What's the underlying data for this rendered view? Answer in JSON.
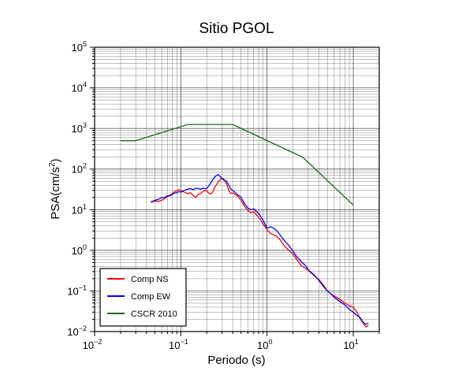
{
  "chart_data": {
    "type": "line",
    "title": "Sitio PGOL",
    "xlabel": "Periodo (s)",
    "ylabel_main": "PSA(cm/s",
    "ylabel_sup": "2",
    "ylabel_close": ")",
    "x_scale": "log",
    "y_scale": "log",
    "xlim": [
      0.01,
      20
    ],
    "ylim": [
      0.01,
      100000
    ],
    "x_ticks": [
      {
        "value": 0.01,
        "base": "10",
        "exp": "−2"
      },
      {
        "value": 0.1,
        "base": "10",
        "exp": "−1"
      },
      {
        "value": 1,
        "base": "10",
        "exp": "0"
      },
      {
        "value": 10,
        "base": "10",
        "exp": "1"
      }
    ],
    "y_ticks": [
      {
        "value": 0.01,
        "base": "10",
        "exp": "−2"
      },
      {
        "value": 0.1,
        "base": "10",
        "exp": "−1"
      },
      {
        "value": 1,
        "base": "10",
        "exp": "0"
      },
      {
        "value": 10,
        "base": "10",
        "exp": "1"
      },
      {
        "value": 100,
        "base": "10",
        "exp": "2"
      },
      {
        "value": 1000,
        "base": "10",
        "exp": "3"
      },
      {
        "value": 10000,
        "base": "10",
        "exp": "4"
      },
      {
        "value": 100000,
        "base": "10",
        "exp": "5"
      }
    ],
    "grid": true,
    "legend_position": "bottom-left",
    "series": [
      {
        "name": "Comp NS",
        "color": "#ff0000",
        "x": [
          0.045,
          0.05,
          0.055,
          0.06,
          0.065,
          0.07,
          0.075,
          0.08,
          0.085,
          0.09,
          0.095,
          0.1,
          0.11,
          0.12,
          0.13,
          0.14,
          0.15,
          0.16,
          0.17,
          0.18,
          0.19,
          0.2,
          0.21,
          0.22,
          0.23,
          0.24,
          0.25,
          0.26,
          0.27,
          0.28,
          0.3,
          0.32,
          0.34,
          0.36,
          0.38,
          0.4,
          0.45,
          0.5,
          0.55,
          0.6,
          0.65,
          0.7,
          0.8,
          0.9,
          1.0,
          1.1,
          1.2,
          1.3,
          1.4,
          1.5,
          1.6,
          1.8,
          2.0,
          2.2,
          2.5,
          2.8,
          3.0,
          3.5,
          4.0,
          4.5,
          5.0,
          5.5,
          6.0,
          7.0,
          8.0,
          9.0,
          10.0,
          11.0,
          12.0,
          13.0,
          14.0,
          15.0
        ],
        "values": [
          15,
          16.5,
          16,
          17,
          19,
          21,
          23,
          25,
          28,
          29,
          31,
          30,
          27,
          25,
          26,
          22,
          20,
          24,
          25,
          28,
          30,
          29,
          26,
          24,
          26,
          30,
          37,
          42,
          48,
          52,
          60,
          55,
          42,
          30,
          25,
          26,
          22,
          17,
          12,
          9.5,
          8.5,
          9,
          6.5,
          4.5,
          3.2,
          2.6,
          2.4,
          2.2,
          1.9,
          1.5,
          1.25,
          1.0,
          0.8,
          0.6,
          0.42,
          0.36,
          0.32,
          0.24,
          0.19,
          0.14,
          0.1,
          0.085,
          0.075,
          0.062,
          0.05,
          0.043,
          0.04,
          0.03,
          0.021,
          0.016,
          0.013,
          0.014
        ]
      },
      {
        "name": "Comp EW",
        "color": "#0000ff",
        "x": [
          0.045,
          0.05,
          0.055,
          0.06,
          0.065,
          0.07,
          0.075,
          0.08,
          0.085,
          0.09,
          0.095,
          0.1,
          0.11,
          0.12,
          0.13,
          0.14,
          0.15,
          0.16,
          0.17,
          0.18,
          0.19,
          0.2,
          0.21,
          0.22,
          0.23,
          0.24,
          0.25,
          0.26,
          0.27,
          0.28,
          0.3,
          0.32,
          0.34,
          0.36,
          0.38,
          0.4,
          0.45,
          0.5,
          0.55,
          0.6,
          0.65,
          0.7,
          0.8,
          0.9,
          1.0,
          1.1,
          1.2,
          1.3,
          1.4,
          1.5,
          1.6,
          1.8,
          2.0,
          2.2,
          2.5,
          2.8,
          3.0,
          3.5,
          4.0,
          4.5,
          5.0,
          5.5,
          6.0,
          7.0,
          8.0,
          9.0,
          10.0,
          11.0,
          12.0,
          13.0,
          14.0,
          15.0
        ],
        "values": [
          15.5,
          17,
          18,
          20,
          20,
          22,
          22,
          24,
          26,
          26,
          28,
          27,
          30,
          32,
          33,
          31,
          34,
          33,
          32,
          34,
          33,
          33,
          38,
          44,
          52,
          58,
          65,
          70,
          73,
          68,
          60,
          52,
          50,
          40,
          32,
          30,
          24,
          20,
          14,
          11,
          10,
          10.5,
          8,
          5.5,
          3.5,
          3.8,
          3.5,
          3.0,
          2.5,
          2.0,
          1.7,
          1.3,
          0.95,
          0.7,
          0.52,
          0.42,
          0.33,
          0.25,
          0.18,
          0.13,
          0.1,
          0.085,
          0.07,
          0.055,
          0.045,
          0.035,
          0.03,
          0.025,
          0.022,
          0.017,
          0.015,
          0.016
        ]
      },
      {
        "name": "CSCR 2010",
        "color": "#1a6b1a",
        "x": [
          0.02,
          0.03,
          0.12,
          0.4,
          2.6,
          10.0
        ],
        "values": [
          500,
          500,
          1250,
          1250,
          195,
          13
        ]
      }
    ]
  }
}
